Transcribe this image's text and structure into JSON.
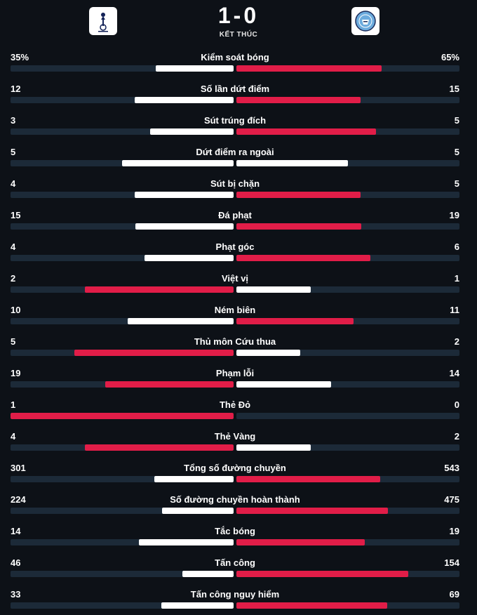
{
  "match": {
    "score": "1-0",
    "status": "KẾT THÚC",
    "home_logo_icon": "tottenham-crest-icon",
    "away_logo_icon": "man-city-crest-icon"
  },
  "colors": {
    "win": "#e11d48",
    "lose": "#ffffff",
    "track": "#1c2a38",
    "background": "#0d1117"
  },
  "stats": [
    {
      "label": "Kiểm soát bóng",
      "home": "35%",
      "away": "65%",
      "home_value": 35,
      "away_value": 65
    },
    {
      "label": "Số lần dứt điểm",
      "home": "12",
      "away": "15",
      "home_value": 12,
      "away_value": 15
    },
    {
      "label": "Sút trúng đích",
      "home": "3",
      "away": "5",
      "home_value": 3,
      "away_value": 5
    },
    {
      "label": "Dứt điểm ra ngoài",
      "home": "5",
      "away": "5",
      "home_value": 5,
      "away_value": 5
    },
    {
      "label": "Sút bị chặn",
      "home": "4",
      "away": "5",
      "home_value": 4,
      "away_value": 5
    },
    {
      "label": "Đá phạt",
      "home": "15",
      "away": "19",
      "home_value": 15,
      "away_value": 19
    },
    {
      "label": "Phạt góc",
      "home": "4",
      "away": "6",
      "home_value": 4,
      "away_value": 6
    },
    {
      "label": "Việt vị",
      "home": "2",
      "away": "1",
      "home_value": 2,
      "away_value": 1
    },
    {
      "label": "Ném biên",
      "home": "10",
      "away": "11",
      "home_value": 10,
      "away_value": 11
    },
    {
      "label": "Thủ môn Cứu thua",
      "home": "5",
      "away": "2",
      "home_value": 5,
      "away_value": 2
    },
    {
      "label": "Phạm lỗi",
      "home": "19",
      "away": "14",
      "home_value": 19,
      "away_value": 14
    },
    {
      "label": "Thẻ Đỏ",
      "home": "1",
      "away": "0",
      "home_value": 1,
      "away_value": 0
    },
    {
      "label": "Thẻ Vàng",
      "home": "4",
      "away": "2",
      "home_value": 4,
      "away_value": 2
    },
    {
      "label": "Tổng số đường chuyền",
      "home": "301",
      "away": "543",
      "home_value": 301,
      "away_value": 543
    },
    {
      "label": "Số đường chuyền hoàn thành",
      "home": "224",
      "away": "475",
      "home_value": 224,
      "away_value": 475
    },
    {
      "label": "Tắc bóng",
      "home": "14",
      "away": "19",
      "home_value": 14,
      "away_value": 19
    },
    {
      "label": "Tấn công",
      "home": "46",
      "away": "154",
      "home_value": 46,
      "away_value": 154
    },
    {
      "label": "Tấn công nguy hiểm",
      "home": "33",
      "away": "69",
      "home_value": 33,
      "away_value": 69
    }
  ]
}
